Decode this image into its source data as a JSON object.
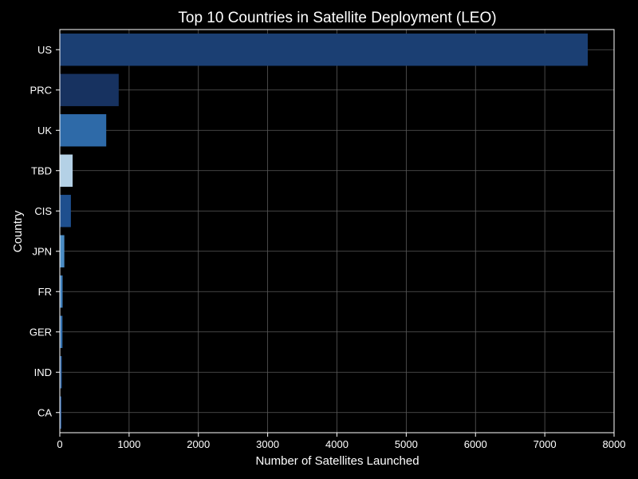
{
  "chart_data": {
    "type": "bar",
    "orientation": "horizontal",
    "title": "Top 10 Countries in Satellite Deployment (LEO)",
    "xlabel": "Number of Satellites Launched",
    "ylabel": "Country",
    "categories": [
      "US",
      "PRC",
      "UK",
      "TBD",
      "CIS",
      "JPN",
      "FR",
      "GER",
      "IND",
      "CA"
    ],
    "values": [
      7620,
      850,
      670,
      185,
      160,
      65,
      40,
      38,
      28,
      22
    ],
    "bar_colors": [
      "#1b3f73",
      "#173260",
      "#2e6aa8",
      "#b4d1e6",
      "#1e4f8e",
      "#4a8cc4",
      "#3f7fbb",
      "#336fae",
      "#2a5f9f",
      "#23569a"
    ],
    "xlim": [
      0,
      8000
    ],
    "xticks": [
      0,
      1000,
      2000,
      3000,
      4000,
      5000,
      6000,
      7000,
      8000
    ],
    "grid": true,
    "legend": "none",
    "colors": {
      "background": "#000000",
      "text": "#ffffff",
      "grid": "#5a5a5a",
      "spine": "#ffffff"
    }
  }
}
